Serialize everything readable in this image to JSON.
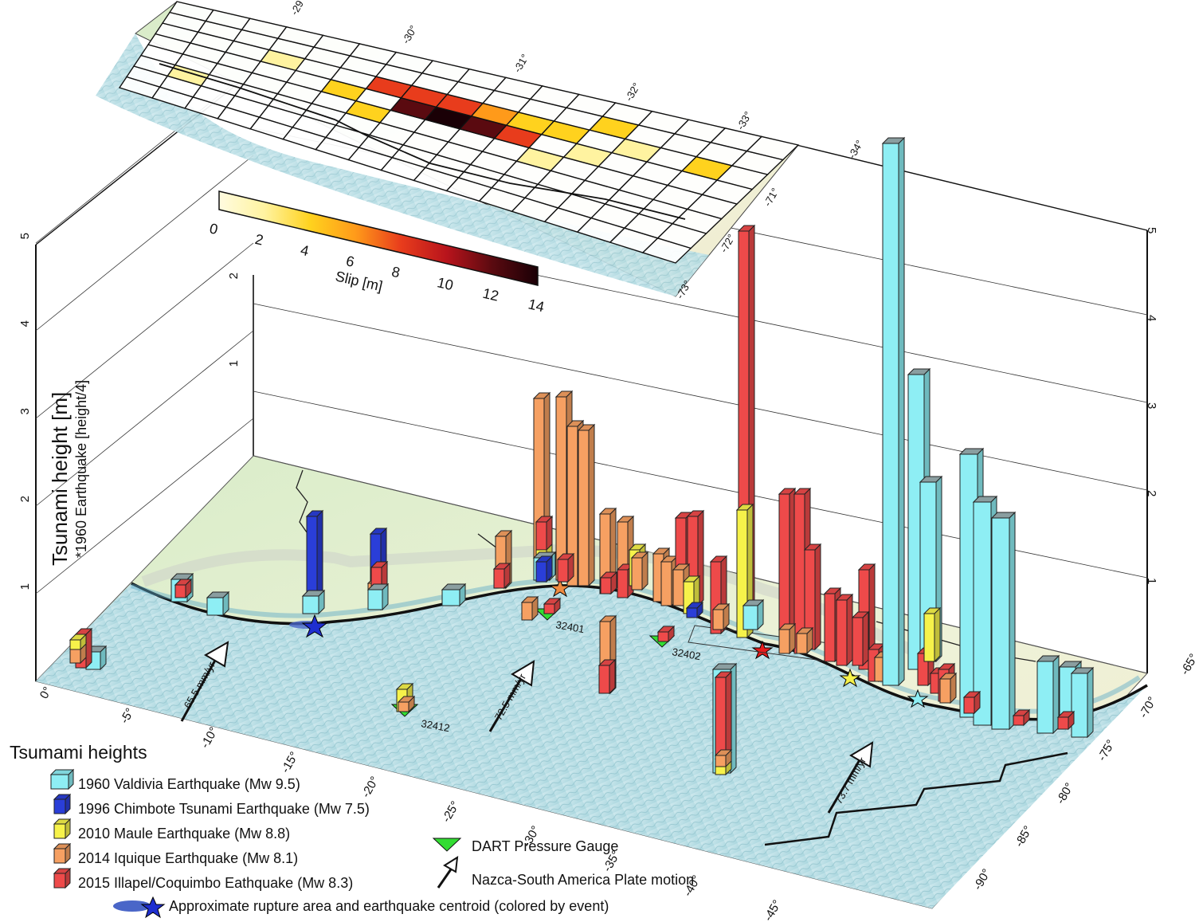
{
  "colorbar": {
    "label": "Slip [m]",
    "ticks": [
      "0",
      "2",
      "4",
      "6",
      "8",
      "10",
      "12",
      "14"
    ],
    "stops": [
      "#fffbe0",
      "#fff3a0",
      "#ffd21e",
      "#ff9a1a",
      "#e83c1c",
      "#b8141c",
      "#5a0a10",
      "#1a0006"
    ]
  },
  "slip_map": {
    "lat_ticks": [
      "-29°",
      "-30°",
      "-31°",
      "-32°",
      "-33°",
      "-34°"
    ],
    "lon_ticks": [
      "-71°",
      "-72°",
      "-73°"
    ]
  },
  "axes": {
    "ylabel": "Tsunami height [m]",
    "ylabel_sub": "*1960  Earthquake [height/4]",
    "left_z_ticks": [
      "1",
      "2",
      "3",
      "4",
      "5"
    ],
    "inner_z_ticks": [
      "1",
      "2"
    ],
    "right_z_ticks": [
      "1",
      "2",
      "3",
      "4",
      "5"
    ],
    "lat_ticks": [
      "0°",
      "-5°",
      "-10°",
      "-15°",
      "-20°",
      "-25°",
      "-30°",
      "-35°",
      "-40°",
      "-45°"
    ],
    "lon_ticks": [
      "-65°",
      "-70°",
      "-75°",
      "-80°",
      "-85°",
      "-90°"
    ]
  },
  "plate_motion": [
    "65.5 mm/yr",
    "72.5 mm/yr",
    "73.7 mm/yr"
  ],
  "dart_stations": [
    "32401",
    "32402",
    "32412"
  ],
  "legend": {
    "title": "Tsumami heights",
    "items": [
      {
        "label": "1960 Valdivia Earthquake (Mw 9.5)",
        "color": "#8eeef4"
      },
      {
        "label": "1996 Chimbote Tsunami Earthquake (Mw 7.5)",
        "color": "#2a3ed8"
      },
      {
        "label": "2010 Maule Earthquake (Mw 8.8)",
        "color": "#f6f24a"
      },
      {
        "label": "2014 Iquique Earthquake (Mw 8.1)",
        "color": "#f6a062"
      },
      {
        "label": "2015 Illapel/Coquimbo Eathquake (Mw 8.3)",
        "color": "#ee4a4a"
      }
    ],
    "dart_label": "DART Pressure Gauge",
    "plate_label": "Nazca-South America Plate motion",
    "rupture_label": "Approximate rupture area and earthquake centroid (colored by event)"
  }
}
